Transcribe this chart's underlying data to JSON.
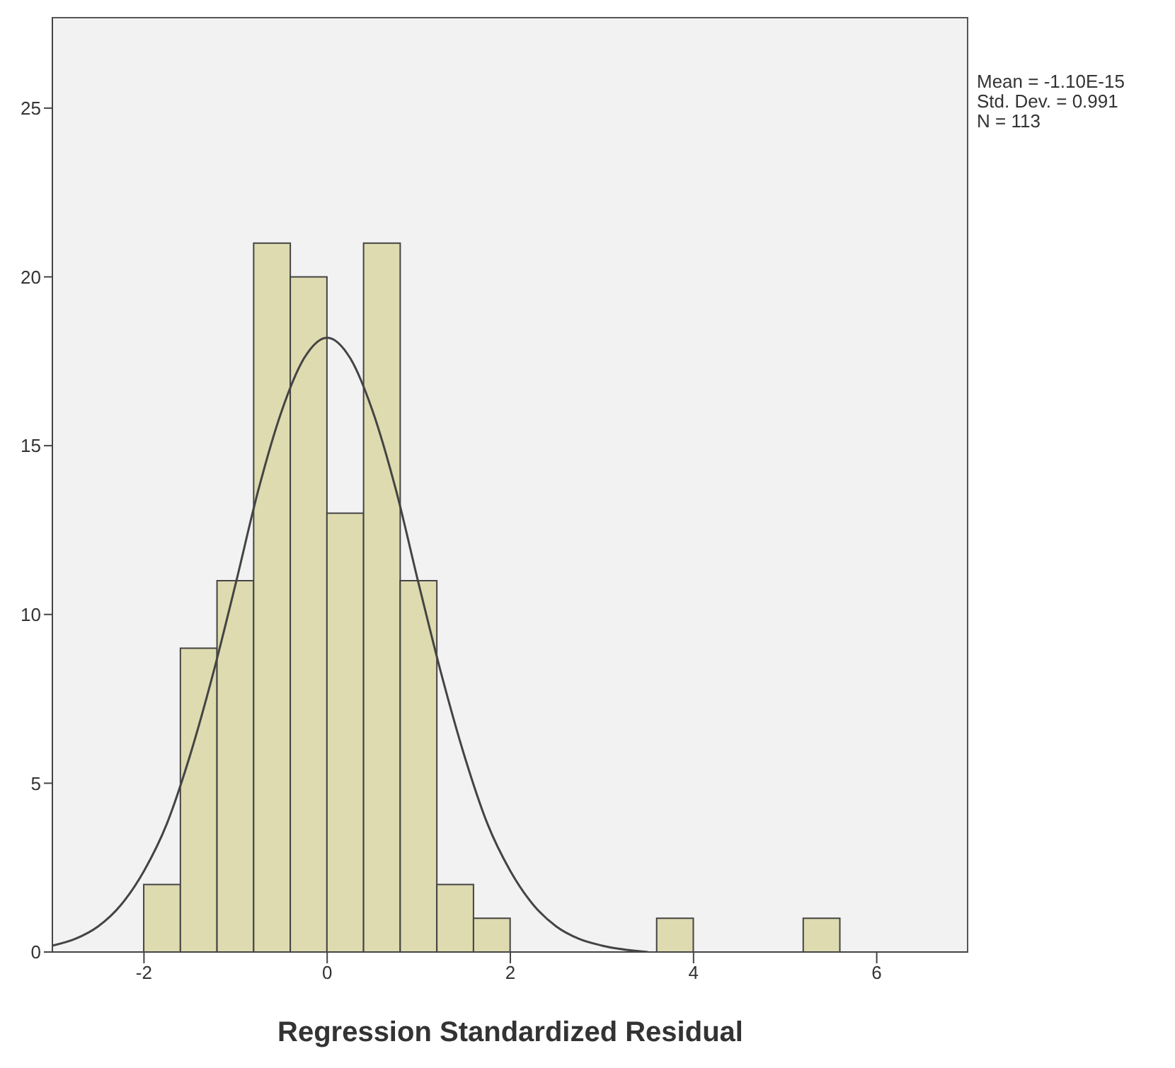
{
  "chart_data": {
    "type": "histogram",
    "xlabel": "Regression Standardized Residual",
    "bins": [
      -2,
      -1.6,
      -1.2,
      -0.8,
      -0.4,
      0,
      0.4,
      0.8,
      1.2,
      1.6,
      2,
      2.4,
      2.8,
      3.2,
      3.6,
      4,
      4.4,
      4.8,
      5.2,
      5.6
    ],
    "values": [
      2,
      9,
      11,
      21,
      20,
      13,
      21,
      11,
      2,
      1,
      0,
      0,
      0,
      0,
      1,
      0,
      0,
      0,
      1
    ],
    "color": "#dedbb0",
    "series": [
      {
        "type": "line",
        "color": "#444444",
        "x": [
          -3,
          -2.75,
          -2.5,
          -2.25,
          -2,
          -1.75,
          -1.5,
          -1.25,
          -1,
          -0.75,
          -0.5,
          -0.25,
          0,
          0.25,
          0.5,
          0.75,
          1,
          1.25,
          1.5,
          1.75,
          2,
          2.25,
          2.5,
          2.75,
          3,
          3.5
        ],
        "values": [
          0.19,
          0.39,
          0.76,
          1.4,
          2.4,
          3.8,
          5.8,
          8.2,
          10.9,
          13.7,
          16,
          17.6,
          18.2,
          17.6,
          16,
          13.7,
          10.9,
          8.2,
          5.8,
          3.8,
          2.4,
          1.4,
          0.76,
          0.39,
          0.19,
          0
        ]
      }
    ],
    "xlim": [
      -3,
      7
    ],
    "xticks": [
      -2,
      0,
      2,
      4,
      6
    ],
    "ylim": [
      0,
      27.7
    ],
    "yticks": [
      0,
      5,
      10,
      15,
      20,
      25
    ],
    "annotations": [
      "Mean = -1.10E-15",
      "Std. Dev. = 0.991",
      "N = 113"
    ]
  }
}
